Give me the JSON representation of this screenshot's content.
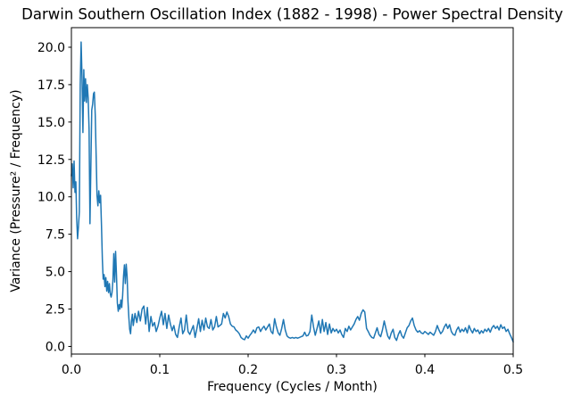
{
  "chart_data": {
    "type": "line",
    "title": "Darwin Southern Oscillation Index (1882 - 1998) - Power Spectral Density",
    "xlabel": "Frequency (Cycles / Month)",
    "ylabel": "Variance (Pressure² / Frequency)",
    "xlim": [
      0,
      0.5
    ],
    "ylim": [
      -0.51,
      21.31
    ],
    "grid": false,
    "legend": "none",
    "line_color": "#1f77b4",
    "spine_color": "#000000",
    "text_color": "#000000",
    "background_color": "#ffffff",
    "xtick_values": [
      0.0,
      0.1,
      0.2,
      0.3,
      0.4,
      0.5
    ],
    "xtick_labels": [
      "0.0",
      "0.1",
      "0.2",
      "0.3",
      "0.4",
      "0.5"
    ],
    "ytick_values": [
      0.0,
      2.5,
      5.0,
      7.5,
      10.0,
      12.5,
      15.0,
      17.5,
      20.0
    ],
    "ytick_labels": [
      "0.0",
      "2.5",
      "5.0",
      "7.5",
      "10.0",
      "12.5",
      "15.0",
      "17.5",
      "20.0"
    ],
    "points": [
      [
        0.0,
        11.4
      ],
      [
        0.001,
        12.2
      ],
      [
        0.002,
        10.6
      ],
      [
        0.003,
        12.4
      ],
      [
        0.004,
        10.3
      ],
      [
        0.005,
        11.0
      ],
      [
        0.006,
        8.6
      ],
      [
        0.007,
        7.2
      ],
      [
        0.008,
        8.0
      ],
      [
        0.009,
        9.0
      ],
      [
        0.01,
        17.5
      ],
      [
        0.011,
        20.35
      ],
      [
        0.012,
        18.0
      ],
      [
        0.013,
        14.3
      ],
      [
        0.014,
        18.5
      ],
      [
        0.015,
        16.4
      ],
      [
        0.016,
        17.9
      ],
      [
        0.017,
        16.3
      ],
      [
        0.018,
        17.5
      ],
      [
        0.019,
        16.6
      ],
      [
        0.02,
        14.5
      ],
      [
        0.021,
        8.2
      ],
      [
        0.022,
        12.0
      ],
      [
        0.023,
        15.8
      ],
      [
        0.024,
        16.2
      ],
      [
        0.025,
        16.9
      ],
      [
        0.026,
        17.0
      ],
      [
        0.027,
        15.5
      ],
      [
        0.028,
        12.8
      ],
      [
        0.029,
        10.1
      ],
      [
        0.03,
        9.4
      ],
      [
        0.031,
        10.4
      ],
      [
        0.032,
        9.6
      ],
      [
        0.033,
        10.1
      ],
      [
        0.034,
        8.1
      ],
      [
        0.035,
        5.8
      ],
      [
        0.036,
        4.5
      ],
      [
        0.037,
        4.8
      ],
      [
        0.038,
        4.0
      ],
      [
        0.039,
        4.6
      ],
      [
        0.04,
        3.7
      ],
      [
        0.041,
        4.35
      ],
      [
        0.042,
        3.6
      ],
      [
        0.043,
        4.2
      ],
      [
        0.044,
        3.5
      ],
      [
        0.045,
        3.3
      ],
      [
        0.046,
        3.6
      ],
      [
        0.047,
        4.4
      ],
      [
        0.048,
        6.2
      ],
      [
        0.049,
        4.3
      ],
      [
        0.05,
        6.35
      ],
      [
        0.051,
        4.8
      ],
      [
        0.052,
        2.9
      ],
      [
        0.053,
        2.35
      ],
      [
        0.054,
        2.8
      ],
      [
        0.055,
        2.5
      ],
      [
        0.056,
        3.1
      ],
      [
        0.057,
        2.6
      ],
      [
        0.058,
        3.4
      ],
      [
        0.059,
        4.7
      ],
      [
        0.06,
        5.45
      ],
      [
        0.061,
        4.2
      ],
      [
        0.062,
        5.5
      ],
      [
        0.063,
        4.7
      ],
      [
        0.064,
        3.0
      ],
      [
        0.065,
        1.9
      ],
      [
        0.066,
        1.15
      ],
      [
        0.067,
        0.85
      ],
      [
        0.068,
        1.7
      ],
      [
        0.069,
        2.15
      ],
      [
        0.07,
        1.4
      ],
      [
        0.072,
        2.2
      ],
      [
        0.074,
        1.6
      ],
      [
        0.076,
        2.35
      ],
      [
        0.078,
        1.7
      ],
      [
        0.08,
        2.5
      ],
      [
        0.082,
        2.7
      ],
      [
        0.084,
        1.5
      ],
      [
        0.086,
        2.6
      ],
      [
        0.088,
        1.0
      ],
      [
        0.09,
        2.0
      ],
      [
        0.092,
        1.35
      ],
      [
        0.094,
        1.6
      ],
      [
        0.096,
        1.0
      ],
      [
        0.098,
        1.35
      ],
      [
        0.1,
        1.9
      ],
      [
        0.102,
        2.35
      ],
      [
        0.104,
        1.45
      ],
      [
        0.106,
        2.2
      ],
      [
        0.108,
        1.2
      ],
      [
        0.11,
        2.1
      ],
      [
        0.112,
        1.5
      ],
      [
        0.114,
        1.05
      ],
      [
        0.116,
        1.4
      ],
      [
        0.118,
        0.8
      ],
      [
        0.12,
        0.6
      ],
      [
        0.122,
        1.3
      ],
      [
        0.124,
        1.9
      ],
      [
        0.126,
        0.85
      ],
      [
        0.128,
        1.1
      ],
      [
        0.13,
        2.1
      ],
      [
        0.132,
        1.0
      ],
      [
        0.134,
        0.8
      ],
      [
        0.136,
        1.1
      ],
      [
        0.138,
        1.4
      ],
      [
        0.14,
        0.6
      ],
      [
        0.142,
        1.2
      ],
      [
        0.144,
        1.85
      ],
      [
        0.146,
        1.0
      ],
      [
        0.148,
        1.75
      ],
      [
        0.15,
        1.1
      ],
      [
        0.152,
        1.9
      ],
      [
        0.154,
        1.3
      ],
      [
        0.156,
        1.2
      ],
      [
        0.158,
        1.8
      ],
      [
        0.16,
        1.1
      ],
      [
        0.162,
        1.3
      ],
      [
        0.164,
        2.0
      ],
      [
        0.166,
        1.3
      ],
      [
        0.168,
        1.4
      ],
      [
        0.17,
        1.5
      ],
      [
        0.172,
        2.2
      ],
      [
        0.174,
        1.9
      ],
      [
        0.176,
        2.3
      ],
      [
        0.178,
        2.0
      ],
      [
        0.18,
        1.5
      ],
      [
        0.182,
        1.35
      ],
      [
        0.184,
        1.3
      ],
      [
        0.186,
        1.1
      ],
      [
        0.188,
        1.0
      ],
      [
        0.19,
        0.85
      ],
      [
        0.192,
        0.6
      ],
      [
        0.194,
        0.5
      ],
      [
        0.196,
        0.45
      ],
      [
        0.198,
        0.7
      ],
      [
        0.2,
        0.55
      ],
      [
        0.202,
        0.75
      ],
      [
        0.204,
        0.9
      ],
      [
        0.206,
        1.1
      ],
      [
        0.208,
        0.9
      ],
      [
        0.21,
        1.25
      ],
      [
        0.212,
        1.3
      ],
      [
        0.214,
        1.0
      ],
      [
        0.216,
        1.2
      ],
      [
        0.218,
        1.35
      ],
      [
        0.22,
        1.1
      ],
      [
        0.222,
        1.3
      ],
      [
        0.224,
        1.5
      ],
      [
        0.226,
        1.0
      ],
      [
        0.228,
        0.85
      ],
      [
        0.23,
        1.85
      ],
      [
        0.232,
        1.3
      ],
      [
        0.234,
        0.9
      ],
      [
        0.236,
        0.75
      ],
      [
        0.238,
        1.2
      ],
      [
        0.24,
        1.8
      ],
      [
        0.242,
        1.1
      ],
      [
        0.244,
        0.7
      ],
      [
        0.246,
        0.6
      ],
      [
        0.248,
        0.55
      ],
      [
        0.25,
        0.6
      ],
      [
        0.252,
        0.55
      ],
      [
        0.254,
        0.6
      ],
      [
        0.256,
        0.55
      ],
      [
        0.258,
        0.6
      ],
      [
        0.26,
        0.65
      ],
      [
        0.262,
        0.7
      ],
      [
        0.264,
        0.95
      ],
      [
        0.266,
        0.7
      ],
      [
        0.268,
        0.75
      ],
      [
        0.27,
        1.0
      ],
      [
        0.272,
        2.1
      ],
      [
        0.274,
        1.3
      ],
      [
        0.276,
        0.75
      ],
      [
        0.278,
        1.2
      ],
      [
        0.28,
        1.7
      ],
      [
        0.282,
        0.9
      ],
      [
        0.284,
        1.8
      ],
      [
        0.286,
        1.0
      ],
      [
        0.288,
        1.6
      ],
      [
        0.29,
        0.8
      ],
      [
        0.292,
        1.5
      ],
      [
        0.294,
        0.9
      ],
      [
        0.296,
        1.2
      ],
      [
        0.298,
        1.0
      ],
      [
        0.3,
        1.15
      ],
      [
        0.302,
        0.9
      ],
      [
        0.304,
        1.1
      ],
      [
        0.306,
        0.8
      ],
      [
        0.308,
        0.6
      ],
      [
        0.31,
        1.2
      ],
      [
        0.312,
        1.0
      ],
      [
        0.314,
        1.35
      ],
      [
        0.316,
        1.1
      ],
      [
        0.318,
        1.3
      ],
      [
        0.32,
        1.5
      ],
      [
        0.322,
        1.8
      ],
      [
        0.324,
        2.0
      ],
      [
        0.326,
        1.75
      ],
      [
        0.328,
        2.2
      ],
      [
        0.33,
        2.45
      ],
      [
        0.332,
        2.3
      ],
      [
        0.334,
        1.2
      ],
      [
        0.336,
        1.0
      ],
      [
        0.338,
        0.75
      ],
      [
        0.34,
        0.6
      ],
      [
        0.342,
        0.55
      ],
      [
        0.344,
        0.9
      ],
      [
        0.346,
        1.25
      ],
      [
        0.348,
        0.8
      ],
      [
        0.35,
        0.65
      ],
      [
        0.352,
        1.1
      ],
      [
        0.354,
        1.7
      ],
      [
        0.356,
        1.2
      ],
      [
        0.358,
        0.7
      ],
      [
        0.36,
        0.5
      ],
      [
        0.362,
        0.9
      ],
      [
        0.364,
        1.15
      ],
      [
        0.366,
        0.6
      ],
      [
        0.368,
        0.4
      ],
      [
        0.37,
        0.8
      ],
      [
        0.372,
        1.05
      ],
      [
        0.374,
        0.7
      ],
      [
        0.376,
        0.55
      ],
      [
        0.378,
        0.9
      ],
      [
        0.38,
        1.25
      ],
      [
        0.382,
        1.4
      ],
      [
        0.384,
        1.7
      ],
      [
        0.386,
        1.9
      ],
      [
        0.388,
        1.4
      ],
      [
        0.39,
        1.1
      ],
      [
        0.392,
        0.95
      ],
      [
        0.394,
        1.05
      ],
      [
        0.396,
        0.9
      ],
      [
        0.398,
        0.85
      ],
      [
        0.4,
        1.0
      ],
      [
        0.402,
        0.9
      ],
      [
        0.404,
        0.8
      ],
      [
        0.406,
        0.95
      ],
      [
        0.408,
        0.85
      ],
      [
        0.41,
        0.75
      ],
      [
        0.412,
        1.0
      ],
      [
        0.414,
        1.4
      ],
      [
        0.416,
        1.1
      ],
      [
        0.418,
        0.85
      ],
      [
        0.42,
        1.0
      ],
      [
        0.422,
        1.3
      ],
      [
        0.424,
        1.5
      ],
      [
        0.426,
        1.2
      ],
      [
        0.428,
        1.45
      ],
      [
        0.43,
        1.0
      ],
      [
        0.432,
        0.8
      ],
      [
        0.434,
        0.75
      ],
      [
        0.436,
        1.1
      ],
      [
        0.438,
        1.3
      ],
      [
        0.44,
        0.95
      ],
      [
        0.442,
        1.15
      ],
      [
        0.444,
        1.0
      ],
      [
        0.446,
        1.25
      ],
      [
        0.448,
        0.9
      ],
      [
        0.45,
        1.4
      ],
      [
        0.452,
        1.1
      ],
      [
        0.454,
        0.9
      ],
      [
        0.456,
        1.2
      ],
      [
        0.458,
        1.0
      ],
      [
        0.46,
        1.1
      ],
      [
        0.462,
        0.85
      ],
      [
        0.464,
        1.05
      ],
      [
        0.466,
        0.9
      ],
      [
        0.468,
        1.15
      ],
      [
        0.47,
        1.0
      ],
      [
        0.472,
        1.2
      ],
      [
        0.474,
        0.95
      ],
      [
        0.476,
        1.25
      ],
      [
        0.478,
        1.4
      ],
      [
        0.48,
        1.2
      ],
      [
        0.482,
        1.35
      ],
      [
        0.484,
        1.1
      ],
      [
        0.486,
        1.45
      ],
      [
        0.488,
        1.2
      ],
      [
        0.49,
        1.3
      ],
      [
        0.492,
        1.0
      ],
      [
        0.494,
        1.15
      ],
      [
        0.496,
        0.85
      ],
      [
        0.498,
        0.6
      ],
      [
        0.5,
        0.3
      ]
    ]
  }
}
